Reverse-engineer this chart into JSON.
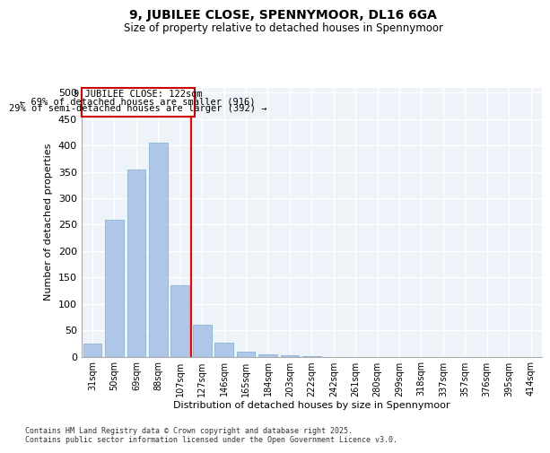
{
  "title1": "9, JUBILEE CLOSE, SPENNYMOOR, DL16 6GA",
  "title2": "Size of property relative to detached houses in Spennymoor",
  "xlabel": "Distribution of detached houses by size in Spennymoor",
  "ylabel": "Number of detached properties",
  "categories": [
    "31sqm",
    "50sqm",
    "69sqm",
    "88sqm",
    "107sqm",
    "127sqm",
    "146sqm",
    "165sqm",
    "184sqm",
    "203sqm",
    "222sqm",
    "242sqm",
    "261sqm",
    "280sqm",
    "299sqm",
    "318sqm",
    "337sqm",
    "357sqm",
    "376sqm",
    "395sqm",
    "414sqm"
  ],
  "values": [
    25,
    260,
    355,
    405,
    135,
    60,
    27,
    10,
    5,
    2,
    1,
    0,
    0,
    0,
    0,
    0,
    0,
    0,
    0,
    0,
    0
  ],
  "bar_color": "#aec6e8",
  "bar_edge_color": "#7bafd4",
  "vline_label": "9 JUBILEE CLOSE: 122sqm",
  "annotation_line1": "← 69% of detached houses are smaller (916)",
  "annotation_line2": "29% of semi-detached houses are larger (392) →",
  "box_color": "#cc0000",
  "footnote1": "Contains HM Land Registry data © Crown copyright and database right 2025.",
  "footnote2": "Contains public sector information licensed under the Open Government Licence v3.0.",
  "ylim": [
    0,
    510
  ],
  "yticks": [
    0,
    50,
    100,
    150,
    200,
    250,
    300,
    350,
    400,
    450,
    500
  ],
  "bg_color": "#eef2f9",
  "grid_color": "#ffffff",
  "title1_fontsize": 10,
  "title2_fontsize": 8.5,
  "vline_pos": 4.5
}
